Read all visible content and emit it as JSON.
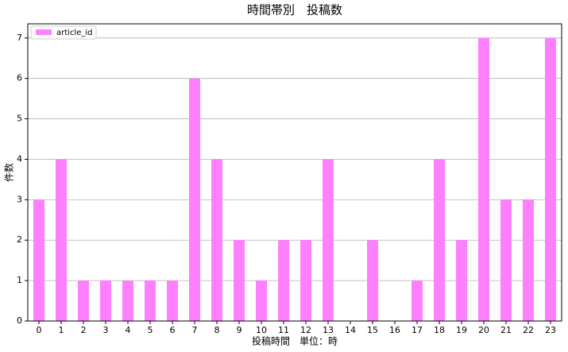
{
  "chart_data": {
    "type": "bar",
    "title": "時間帯別　投稿数",
    "x_label": "投稿時間　単位：時",
    "y_label": "件数",
    "categories": [
      "0",
      "1",
      "2",
      "3",
      "4",
      "5",
      "6",
      "7",
      "8",
      "9",
      "10",
      "11",
      "12",
      "13",
      "14",
      "15",
      "16",
      "17",
      "18",
      "19",
      "20",
      "21",
      "22",
      "23"
    ],
    "series": [
      {
        "name": "article_id",
        "color": "#ff80ff",
        "values": [
          3,
          4,
          1,
          1,
          1,
          1,
          1,
          6,
          4,
          2,
          1,
          2,
          2,
          4,
          0,
          2,
          0,
          1,
          4,
          2,
          7,
          3,
          3,
          7
        ]
      }
    ],
    "ylim": [
      0,
      7.35
    ],
    "yticks": [
      0,
      1,
      2,
      3,
      4,
      5,
      6,
      7
    ],
    "grid": true,
    "legend": "upper left"
  }
}
